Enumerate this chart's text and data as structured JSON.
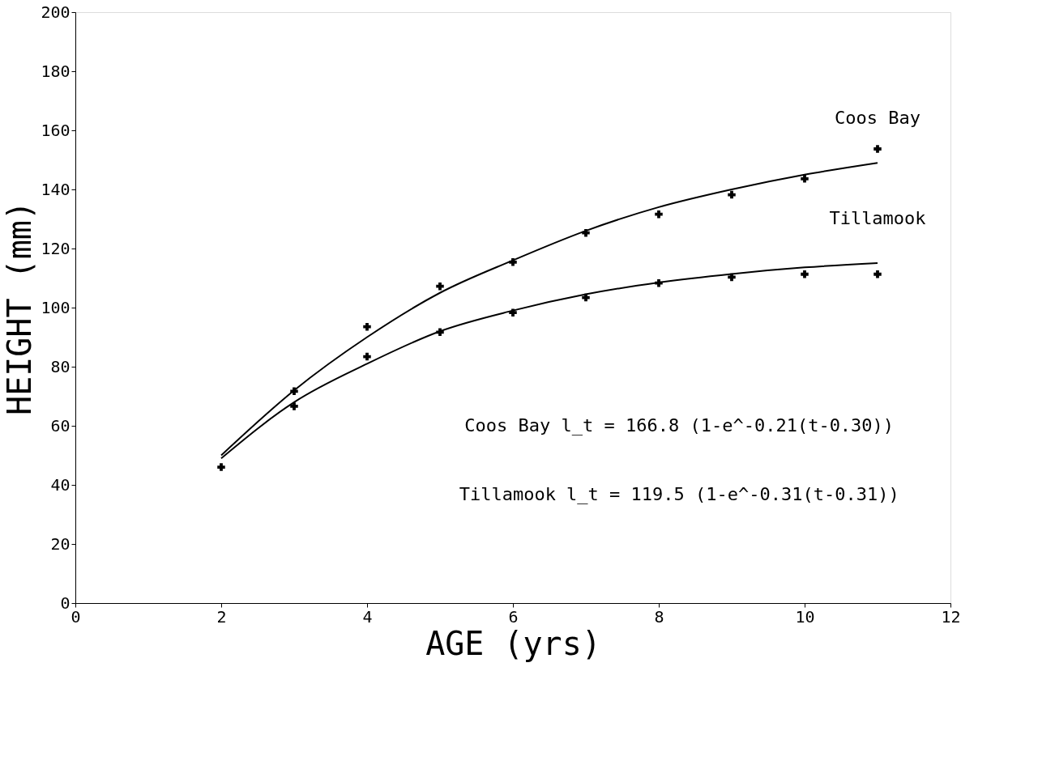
{
  "chart_data": {
    "type": "line",
    "xlabel": "AGE (yrs)",
    "ylabel": "HEIGHT (mm)",
    "x": [
      2,
      3,
      4,
      5,
      6,
      7,
      8,
      9,
      10,
      11
    ],
    "series": [
      {
        "name": "Coos Bay",
        "marker": "none",
        "line_style": "solid",
        "color": "#000000",
        "values": [
          50,
          72,
          90,
          105,
          116,
          126,
          134,
          140,
          145,
          149
        ]
      },
      {
        "type": "scatter",
        "marker": "cross",
        "color": "#000000",
        "values": [
          null,
          71.7,
          93.5,
          107.2,
          115.4,
          125.3,
          131.6,
          138.2,
          143.6,
          153.7
        ]
      },
      {
        "name": "Tillamook",
        "marker": "none",
        "line_style": "solid",
        "color": "#000000",
        "values": [
          49,
          68,
          81,
          92,
          99,
          104.5,
          108.5,
          111.4,
          113.6,
          115.1
        ]
      },
      {
        "type": "scatter",
        "marker": "cross",
        "color": "#000000",
        "values": [
          46,
          66.6,
          83.4,
          91.7,
          98.3,
          103.4,
          108.3,
          110.3,
          111.3,
          111.3
        ]
      }
    ],
    "annotations": [
      "Coos Bay l_t = 166.8 (1-e^-0.21(t-0.30))",
      "Tillamook l_t = 119.5 (1-e^-0.31(t-0.31))"
    ],
    "xlim": [
      0,
      12
    ],
    "xticks": [
      0,
      2,
      4,
      6,
      8,
      10,
      12
    ],
    "ylim": [
      0,
      200
    ],
    "yticks": [
      0,
      20,
      40,
      60,
      80,
      100,
      120,
      140,
      160,
      180,
      200
    ],
    "grid": false,
    "legend": false
  }
}
